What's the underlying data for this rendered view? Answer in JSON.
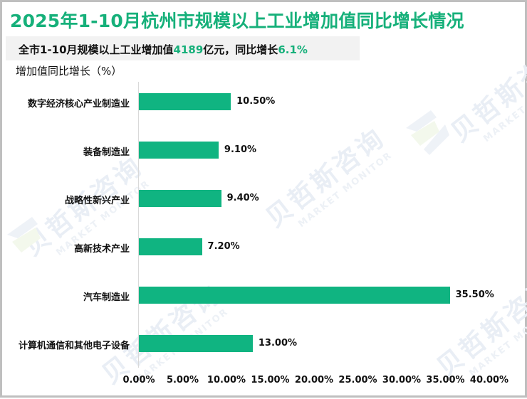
{
  "title": "2025年1-10月杭州市规模以上工业增加值同比增长情况",
  "summary": {
    "prefix": "全市1-10月规模以上工业增加值",
    "value": "4189",
    "middle": "亿元，同比增长",
    "growth": "6.1%"
  },
  "axis_title": "增加值同比增长（%）",
  "watermark": {
    "cn": "贝哲斯咨询",
    "en": "MARKET MONITOR"
  },
  "colors": {
    "title": "#16b07a",
    "bar": "#10b481",
    "highlight": "#16b07a"
  },
  "chart_data": {
    "type": "bar",
    "orientation": "horizontal",
    "title": "2025年1-10月杭州市规模以上工业增加值同比增长情况",
    "xlabel": "",
    "ylabel": "增加值同比增长（%）",
    "categories": [
      "数字经济核心产业制造业",
      "装备制造业",
      "战略性新兴产业",
      "高新技术产业",
      "汽车制造业",
      "计算机通信和其他电子设备"
    ],
    "values": [
      10.5,
      9.1,
      9.4,
      7.2,
      35.5,
      13.0
    ],
    "value_labels": [
      "10.50%",
      "9.10%",
      "9.40%",
      "7.20%",
      "35.50%",
      "13.00%"
    ],
    "xlim": [
      0,
      40
    ],
    "x_ticks": [
      "0.00%",
      "5.00%",
      "10.00%",
      "15.00%",
      "20.00%",
      "25.00%",
      "30.00%",
      "35.00%",
      "40.00%"
    ],
    "grid": false,
    "legend": null
  }
}
